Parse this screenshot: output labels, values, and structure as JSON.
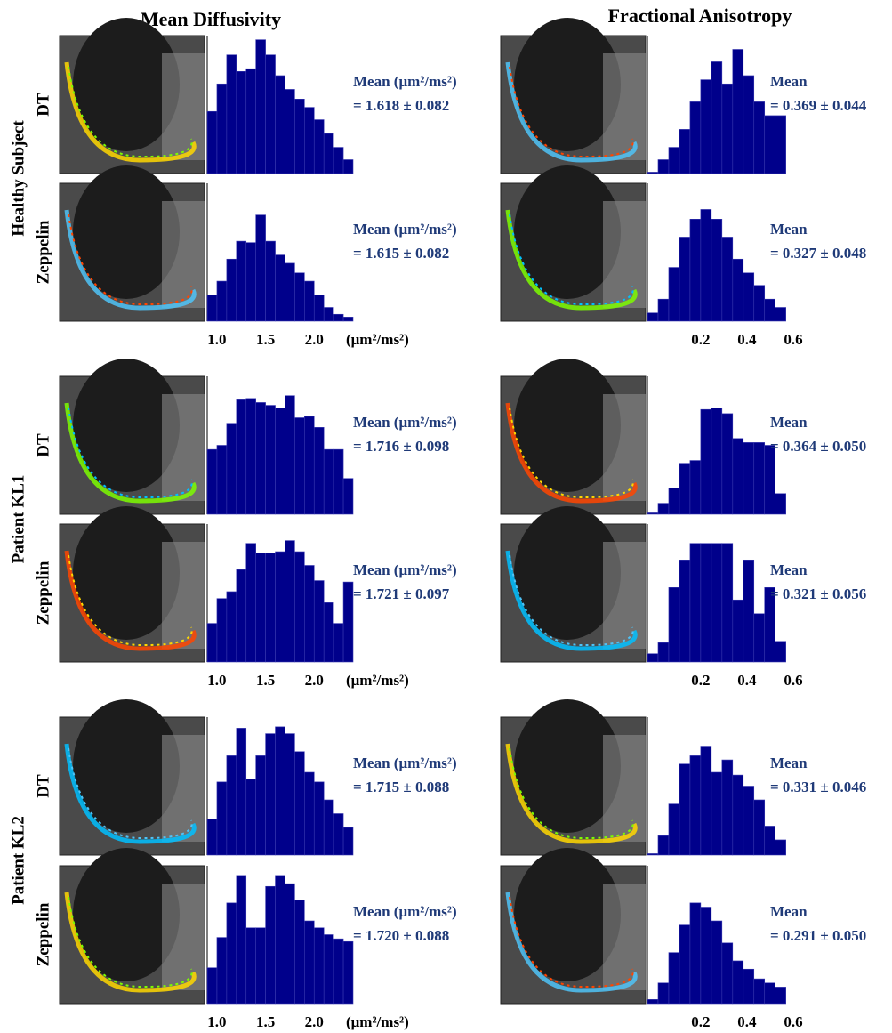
{
  "column_titles": [
    "Mean Diffusivity",
    "Fractional Anisotropy"
  ],
  "row_groups": [
    {
      "label": "Healthy Subject",
      "rows": [
        "DT",
        "Zeppelin"
      ]
    },
    {
      "label": "Patient KL1",
      "rows": [
        "DT",
        "Zeppelin"
      ]
    },
    {
      "label": "Patient KL2",
      "rows": [
        "DT",
        "Zeppelin"
      ]
    }
  ],
  "chart_data": [
    {
      "type": "histogram",
      "color": "#00008b",
      "bins": [
        0.9,
        1.0,
        1.1,
        1.2,
        1.3,
        1.4,
        1.5,
        1.6,
        1.7,
        1.8,
        1.9,
        2.0,
        2.1,
        2.2,
        2.3,
        2.4
      ],
      "values": [
        45,
        65,
        86,
        74,
        76,
        97,
        86,
        71,
        61,
        54,
        48,
        39,
        29,
        19,
        10
      ],
      "xlim": [
        0.9,
        2.4
      ],
      "ylim": [
        0,
        100
      ],
      "annotation": [
        "Mean (μm²/ms²)",
        "= 1.618 ± 0.082"
      ]
    },
    {
      "type": "histogram",
      "color": "#00008b",
      "bins": [
        0.9,
        1.0,
        1.1,
        1.2,
        1.3,
        1.4,
        1.5,
        1.6,
        1.7,
        1.8,
        1.9,
        2.0,
        2.1,
        2.2,
        2.3,
        2.4
      ],
      "values": [
        19,
        29,
        45,
        58,
        57,
        77,
        58,
        48,
        42,
        35,
        29,
        19,
        10,
        5,
        3
      ],
      "xlim": [
        0.9,
        2.4
      ],
      "ylim": [
        0,
        100
      ],
      "xticks": [
        {
          "value": 1.0,
          "label": "1.0"
        },
        1.5,
        {
          "value": 2.0,
          "label": "2.0"
        }
      ],
      "xlabel": "(μm²/ms²)",
      "annotation": [
        "Mean (μm²/ms²)",
        "= 1.615 ± 0.082"
      ]
    },
    {
      "type": "histogram",
      "color": "#00008b",
      "bins": [
        0.9,
        1.0,
        1.1,
        1.2,
        1.3,
        1.4,
        1.5,
        1.6,
        1.7,
        1.8,
        1.9,
        2.0,
        2.1,
        2.2,
        2.3,
        2.4
      ],
      "values": [
        47,
        50,
        66,
        83,
        84,
        81,
        79,
        77,
        86,
        70,
        71,
        63,
        47,
        47,
        26
      ],
      "xlim": [
        0.9,
        2.4
      ],
      "ylim": [
        0,
        100
      ],
      "annotation": [
        "Mean (μm²/ms²)",
        "= 1.716 ± 0.098"
      ]
    },
    {
      "type": "histogram",
      "color": "#00008b",
      "bins": [
        0.9,
        1.0,
        1.1,
        1.2,
        1.3,
        1.4,
        1.5,
        1.6,
        1.7,
        1.8,
        1.9,
        2.0,
        2.1,
        2.2,
        2.3,
        2.4
      ],
      "values": [
        28,
        46,
        51,
        67,
        86,
        79,
        79,
        80,
        88,
        80,
        70,
        59,
        43,
        28,
        58
      ],
      "xlim": [
        0.9,
        2.4
      ],
      "ylim": [
        0,
        100
      ],
      "xticks": [
        {
          "value": 1.0,
          "label": "1.0"
        },
        1.5,
        {
          "value": 2.0,
          "label": "2.0"
        }
      ],
      "xlabel": "(μm²/ms²)",
      "annotation": [
        "Mean (μm²/ms²)",
        "= 1.721 ± 0.097"
      ]
    },
    {
      "type": "histogram",
      "color": "#00008b",
      "bins": [
        0.9,
        1.0,
        1.1,
        1.2,
        1.3,
        1.4,
        1.5,
        1.6,
        1.7,
        1.8,
        1.9,
        2.0,
        2.1,
        2.2,
        2.3,
        2.4
      ],
      "values": [
        26,
        53,
        72,
        92,
        55,
        72,
        88,
        93,
        88,
        75,
        60,
        53,
        40,
        30,
        20
      ],
      "xlim": [
        0.9,
        2.4
      ],
      "ylim": [
        0,
        100
      ],
      "annotation": [
        "Mean (μm²/ms²)",
        "= 1.715 ± 0.088"
      ]
    },
    {
      "type": "histogram",
      "color": "#00008b",
      "bins": [
        0.9,
        1.0,
        1.1,
        1.2,
        1.3,
        1.4,
        1.5,
        1.6,
        1.7,
        1.8,
        1.9,
        2.0,
        2.1,
        2.2,
        2.3,
        2.4
      ],
      "values": [
        26,
        48,
        73,
        93,
        55,
        55,
        85,
        93,
        87,
        75,
        60,
        55,
        50,
        47,
        45
      ],
      "xlim": [
        0.9,
        2.4
      ],
      "ylim": [
        0,
        100
      ],
      "xticks": [
        {
          "value": 1.0,
          "label": "1.0"
        },
        1.5,
        {
          "value": 2.0,
          "label": "2.0"
        }
      ],
      "xlabel": "(μm²/ms²)",
      "annotation": [
        "Mean (μm²/ms²)",
        "= 1.720 ± 0.088"
      ]
    },
    {
      "type": "histogram",
      "color": "#00008b",
      "bins": [
        -0.03,
        0.016,
        0.062,
        0.108,
        0.154,
        0.2,
        0.246,
        0.292,
        0.338,
        0.384,
        0.43,
        0.476,
        0.522,
        0.568
      ],
      "values": [
        1,
        10,
        19,
        32,
        52,
        68,
        81,
        65,
        90,
        71,
        52,
        42,
        42
      ],
      "xlim": [
        -0.03,
        0.6
      ],
      "ylim": [
        0,
        100
      ],
      "annotation": [
        "Mean",
        "= 0.369 ± 0.044"
      ]
    },
    {
      "type": "histogram",
      "color": "#00008b",
      "bins": [
        -0.03,
        0.016,
        0.062,
        0.108,
        0.154,
        0.2,
        0.246,
        0.292,
        0.338,
        0.384,
        0.43,
        0.476,
        0.522,
        0.568
      ],
      "values": [
        6,
        16,
        39,
        61,
        74,
        81,
        74,
        61,
        45,
        35,
        26,
        16,
        10
      ],
      "xlim": [
        -0.03,
        0.6
      ],
      "ylim": [
        0,
        100
      ],
      "xticks": [
        0.2,
        0.4,
        0.6
      ],
      "annotation": [
        "Mean",
        "= 0.327 ± 0.048"
      ]
    },
    {
      "type": "histogram",
      "color": "#00008b",
      "bins": [
        -0.03,
        0.016,
        0.062,
        0.108,
        0.154,
        0.2,
        0.246,
        0.292,
        0.338,
        0.384,
        0.43,
        0.476,
        0.522,
        0.568
      ],
      "values": [
        1,
        8,
        19,
        37,
        39,
        76,
        77,
        73,
        55,
        52,
        52,
        50,
        15
      ],
      "xlim": [
        -0.03,
        0.6
      ],
      "ylim": [
        0,
        100
      ],
      "annotation": [
        "Mean",
        "= 0.364 ± 0.050"
      ]
    },
    {
      "type": "histogram",
      "color": "#00008b",
      "bins": [
        -0.03,
        0.016,
        0.062,
        0.108,
        0.154,
        0.2,
        0.246,
        0.292,
        0.338,
        0.384,
        0.43,
        0.476,
        0.522,
        0.568
      ],
      "values": [
        6,
        14,
        54,
        74,
        86,
        86,
        86,
        86,
        45,
        74,
        35,
        54,
        15
      ],
      "xlim": [
        -0.03,
        0.6
      ],
      "ylim": [
        0,
        100
      ],
      "xticks": [
        0.2,
        0.4,
        0.6
      ],
      "annotation": [
        "Mean",
        "= 0.321 ± 0.056"
      ]
    },
    {
      "type": "histogram",
      "color": "#00008b",
      "bins": [
        -0.03,
        0.016,
        0.062,
        0.108,
        0.154,
        0.2,
        0.246,
        0.292,
        0.338,
        0.384,
        0.43,
        0.476,
        0.522,
        0.568
      ],
      "values": [
        1,
        14,
        37,
        66,
        72,
        79,
        60,
        69,
        58,
        50,
        40,
        21,
        11
      ],
      "xlim": [
        -0.03,
        0.6
      ],
      "ylim": [
        0,
        100
      ],
      "annotation": [
        "Mean",
        "= 0.331 ± 0.046"
      ]
    },
    {
      "type": "histogram",
      "color": "#00008b",
      "bins": [
        -0.03,
        0.016,
        0.062,
        0.108,
        0.154,
        0.2,
        0.246,
        0.292,
        0.338,
        0.384,
        0.43,
        0.476,
        0.522,
        0.568
      ],
      "values": [
        3,
        15,
        37,
        57,
        73,
        70,
        60,
        44,
        31,
        25,
        18,
        15,
        12
      ],
      "xlim": [
        -0.03,
        0.6
      ],
      "ylim": [
        0,
        100
      ],
      "xticks": [
        0.2,
        0.4,
        0.6
      ],
      "annotation": [
        "Mean",
        "= 0.291 ± 0.050"
      ]
    }
  ]
}
